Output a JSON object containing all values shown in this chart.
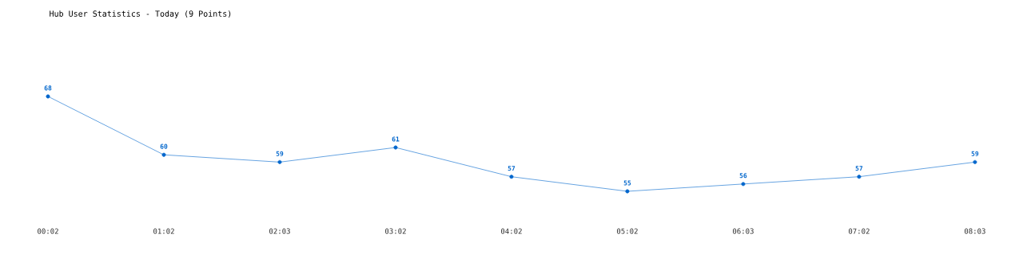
{
  "chart_data": {
    "type": "line",
    "title": "Hub User Statistics - Today (9 Points)",
    "categories": [
      "00:02",
      "01:02",
      "02:03",
      "03:02",
      "04:02",
      "05:02",
      "06:03",
      "07:02",
      "08:03"
    ],
    "values": [
      68,
      60,
      59,
      61,
      57,
      55,
      56,
      57,
      59
    ],
    "color": "#0066cc",
    "marker": "circle",
    "data_labels": true
  }
}
